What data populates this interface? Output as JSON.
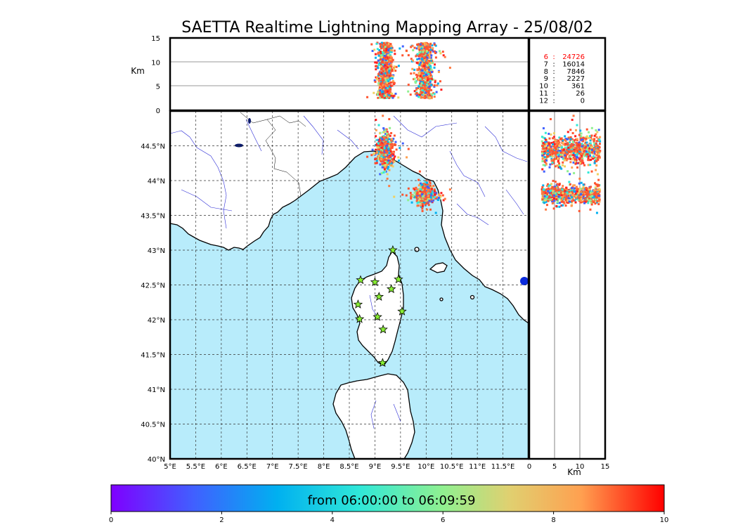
{
  "chart_data": {
    "type": "scatter",
    "title": "SAETTA Realtime Lightning Mapping Array - 25/08/02",
    "map": {
      "lon_ticks": [
        "5°E",
        "5.5°E",
        "6°E",
        "6.5°E",
        "7°E",
        "7.5°E",
        "8°E",
        "8.5°E",
        "9°E",
        "9.5°E",
        "10°E",
        "10.5°E",
        "11°E",
        "11.5°E"
      ],
      "lat_ticks": [
        "40°N",
        "40.5°N",
        "41°N",
        "41.5°N",
        "42°N",
        "42.5°N",
        "43°N",
        "43.5°N",
        "44°N",
        "44.5°N"
      ],
      "xlim": [
        5,
        12
      ],
      "ylim": [
        40,
        45
      ],
      "grid": true,
      "stations": [
        {
          "lon": 9.35,
          "lat": 43.0
        },
        {
          "lon": 8.72,
          "lat": 42.57
        },
        {
          "lon": 9.0,
          "lat": 42.54
        },
        {
          "lon": 9.46,
          "lat": 42.58
        },
        {
          "lon": 9.32,
          "lat": 42.44
        },
        {
          "lon": 9.08,
          "lat": 42.33
        },
        {
          "lon": 8.67,
          "lat": 42.22
        },
        {
          "lon": 9.53,
          "lat": 42.12
        },
        {
          "lon": 8.7,
          "lat": 42.01
        },
        {
          "lon": 9.05,
          "lat": 42.04
        },
        {
          "lon": 9.16,
          "lat": 41.86
        },
        {
          "lon": 9.15,
          "lat": 41.38
        }
      ],
      "clusters": [
        {
          "lon": 9.2,
          "lat": 44.43,
          "spread_lon": 0.07,
          "spread_lat": 0.1
        },
        {
          "lon": 9.97,
          "lat": 43.8,
          "spread_lon": 0.08,
          "spread_lat": 0.06
        }
      ]
    },
    "altitude_lon_panel": {
      "ylabel": "Km",
      "y_ticks": [
        "0",
        "5",
        "10",
        "15"
      ],
      "ylim": [
        0,
        15
      ]
    },
    "alt_lat_panel": {
      "xlabel": "Km",
      "x_ticks": [
        "0",
        "5",
        "10",
        "15"
      ],
      "xlim": [
        0,
        15
      ]
    },
    "station_counts": [
      {
        "stations": "6",
        "count": "24726",
        "highlight": true
      },
      {
        "stations": "7",
        "count": "16014",
        "highlight": false
      },
      {
        "stations": "8",
        "count": "7846",
        "highlight": false
      },
      {
        "stations": "9",
        "count": "2227",
        "highlight": false
      },
      {
        "stations": "10",
        "count": "361",
        "highlight": false
      },
      {
        "stations": "11",
        "count": "26",
        "highlight": false
      },
      {
        "stations": "12",
        "count": "0",
        "highlight": false
      }
    ],
    "colorbar": {
      "label": "from 06:00:00 to 06:09:59",
      "ticks": [
        "0",
        "2",
        "4",
        "6",
        "8",
        "10"
      ],
      "range": [
        0,
        10
      ]
    },
    "colors": {
      "ocean": "#b8ecfb",
      "station_marker": "#88ee33",
      "cluster_main": "#ff5530",
      "highlight_text": "#ff0000"
    }
  }
}
